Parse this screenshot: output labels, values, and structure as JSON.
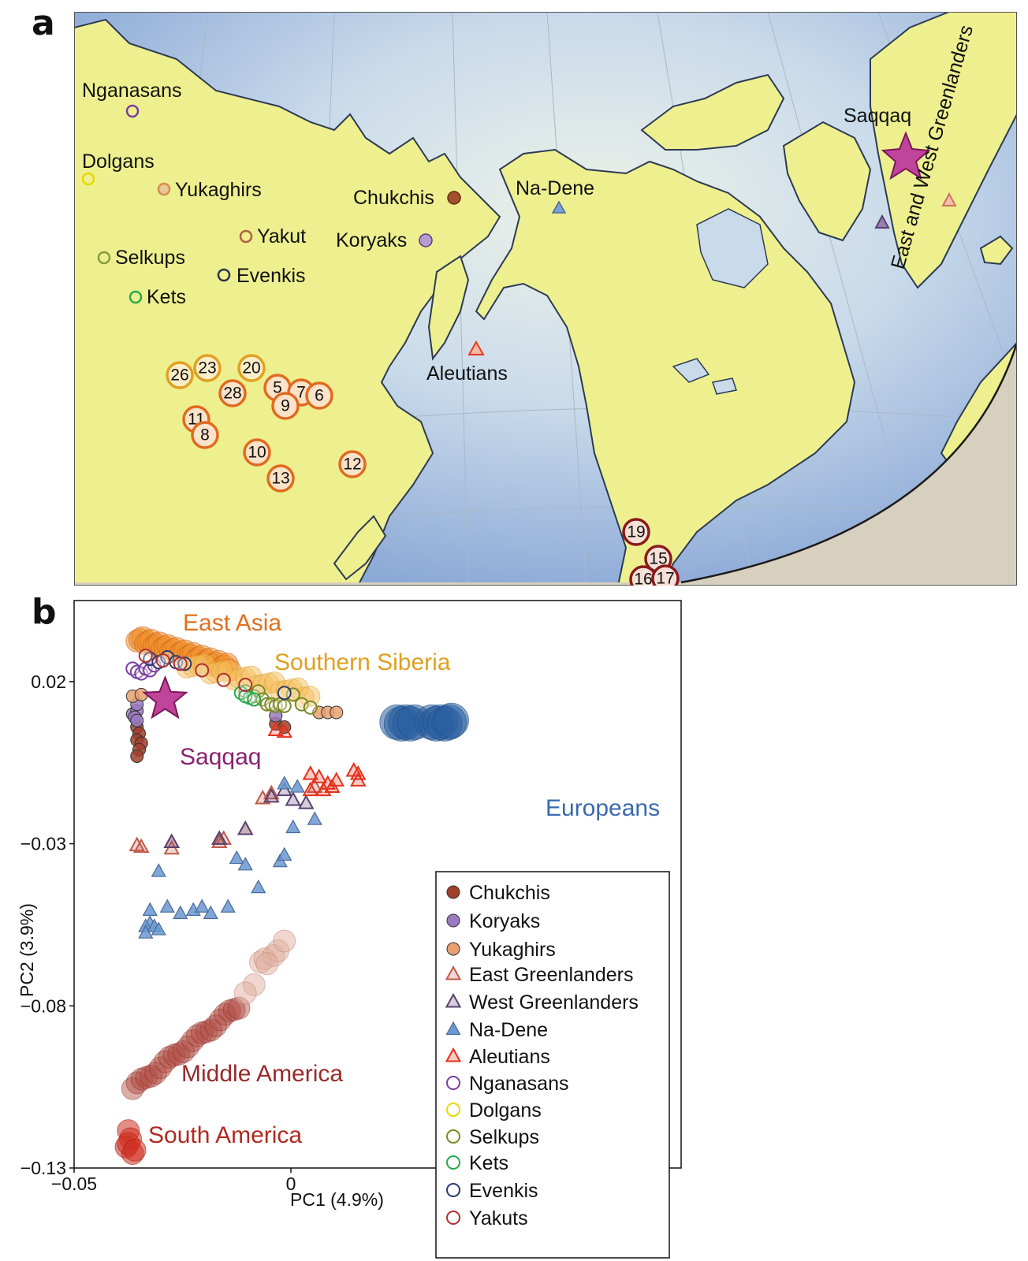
{
  "panel_a": {
    "letter": "a",
    "populations": [
      {
        "label": "Nganasans",
        "color": "#7a3fa0"
      },
      {
        "label": "Dolgans",
        "color": "#e6d800"
      },
      {
        "label": "Yukaghirs",
        "color": "#d98a50"
      },
      {
        "label": "Selkups",
        "color": "#8a9a40"
      },
      {
        "label": "Kets",
        "color": "#2aa84a"
      },
      {
        "label": "Yakut",
        "color": "#b06040"
      },
      {
        "label": "Evenkis",
        "color": "#2a3550"
      },
      {
        "label": "Chukchis",
        "color": "#a0502a"
      },
      {
        "label": "Koryaks",
        "color": "#9a7ac0"
      },
      {
        "label": "Na-Dene",
        "color": "#7aa0d0"
      },
      {
        "label": "Aleutians",
        "color": "#e83a20"
      },
      {
        "label": "Saqqaq",
        "color": "#c0449a"
      },
      {
        "label": "East and West Greenlanders",
        "color": "#d07060"
      }
    ],
    "sites": [
      "26",
      "23",
      "20",
      "28",
      "5",
      "7",
      "6",
      "9",
      "11",
      "8",
      "10",
      "13",
      "12",
      "19",
      "15",
      "16",
      "17"
    ]
  },
  "panel_b": {
    "letter": "b",
    "chart_data": {
      "type": "scatter",
      "xlabel": "PC1 (4.9%)",
      "ylabel": "PC2 (3.9%)",
      "x_ticks": [
        "−0.05",
        "0"
      ],
      "y_ticks": [
        "0.02",
        "−0.03",
        "−0.08",
        "−0.13"
      ],
      "xlim": [
        -0.05,
        0.09
      ],
      "ylim": [
        -0.13,
        0.045
      ],
      "region_labels": [
        {
          "text": "East Asia",
          "color": "#e07020"
        },
        {
          "text": "Southern Siberia",
          "color": "#e0a020"
        },
        {
          "text": "Saqqaq",
          "color": "#8a2070"
        },
        {
          "text": "Europeans",
          "color": "#3a6ab0"
        },
        {
          "text": "Middle America",
          "color": "#9a2a2a"
        },
        {
          "text": "South America",
          "color": "#b02a20"
        }
      ],
      "legend_position": "bottom-right",
      "legend": [
        {
          "label": "Chukchis",
          "marker": "filled-circle",
          "color": "#a0402a"
        },
        {
          "label": "Koryaks",
          "marker": "filled-circle",
          "color": "#9a7ac0"
        },
        {
          "label": "Yukaghirs",
          "marker": "filled-circle",
          "color": "#e8a070"
        },
        {
          "label": "East Greenlanders",
          "marker": "open-triangle",
          "color": "#c05a4a"
        },
        {
          "label": "West Greenlanders",
          "marker": "open-triangle",
          "color": "#5a4070"
        },
        {
          "label": "Na-Dene",
          "marker": "filled-triangle",
          "color": "#6a98d0"
        },
        {
          "label": "Aleutians",
          "marker": "open-triangle",
          "color": "#e8301a"
        },
        {
          "label": "Nganasans",
          "marker": "open-circle",
          "color": "#7a3fa0"
        },
        {
          "label": "Dolgans",
          "marker": "open-circle",
          "color": "#e6d800"
        },
        {
          "label": "Selkups",
          "marker": "open-circle",
          "color": "#7a8a20"
        },
        {
          "label": "Kets",
          "marker": "open-circle",
          "color": "#2aa84a"
        },
        {
          "label": "Evenkis",
          "marker": "open-circle",
          "color": "#2a3a70"
        },
        {
          "label": "Yakuts",
          "marker": "open-circle",
          "color": "#b03030"
        }
      ],
      "series": [
        {
          "name": "Chukchis",
          "points": [
            [
              -0.0355,
              0.006
            ],
            [
              -0.035,
              0.004
            ],
            [
              -0.0355,
              0.002
            ],
            [
              -0.0345,
              0.001
            ],
            [
              -0.035,
              -0.001
            ],
            [
              -0.0355,
              -0.003
            ],
            [
              -0.0035,
              0.007
            ],
            [
              -0.0015,
              0.006
            ]
          ]
        },
        {
          "name": "Koryaks",
          "points": [
            [
              -0.0365,
              0.01
            ],
            [
              -0.0355,
              0.011
            ],
            [
              -0.036,
              0.009
            ],
            [
              -0.0355,
              0.008
            ],
            [
              -0.0355,
              0.013
            ],
            [
              -0.0035,
              0.0095
            ]
          ]
        },
        {
          "name": "Yukaghirs",
          "points": [
            [
              -0.0365,
              0.0155
            ],
            [
              -0.0345,
              0.016
            ],
            [
              0.0065,
              0.0105
            ],
            [
              0.0085,
              0.0105
            ],
            [
              0.0105,
              0.0105
            ]
          ]
        },
        {
          "name": "East Greenlanders",
          "points": [
            [
              -0.0355,
              -0.0305
            ],
            [
              -0.0345,
              -0.031
            ],
            [
              -0.0275,
              -0.0315
            ],
            [
              -0.0275,
              -0.0295
            ],
            [
              -0.0165,
              -0.0295
            ],
            [
              -0.0155,
              -0.0285
            ],
            [
              -0.0065,
              -0.016
            ],
            [
              -0.0045,
              -0.0145
            ],
            [
              0.0055,
              -0.0125
            ],
            [
              -0.0105,
              -0.0255
            ]
          ]
        },
        {
          "name": "West Greenlanders",
          "points": [
            [
              -0.0275,
              -0.0295
            ],
            [
              -0.0165,
              -0.0285
            ],
            [
              -0.0105,
              -0.0255
            ],
            [
              -0.0045,
              -0.0155
            ],
            [
              -0.0015,
              -0.0135
            ],
            [
              0.0005,
              -0.0165
            ],
            [
              0.0035,
              -0.0175
            ]
          ]
        },
        {
          "name": "Na-Dene",
          "points": [
            [
              -0.0305,
              -0.0385
            ],
            [
              -0.0325,
              -0.0505
            ],
            [
              -0.0285,
              -0.0495
            ],
            [
              -0.0255,
              -0.0515
            ],
            [
              -0.0325,
              -0.0545
            ],
            [
              -0.0335,
              -0.0555
            ],
            [
              -0.0315,
              -0.0555
            ],
            [
              -0.0335,
              -0.0575
            ],
            [
              -0.0305,
              -0.0565
            ],
            [
              -0.0225,
              -0.0505
            ],
            [
              -0.0205,
              -0.0495
            ],
            [
              -0.0185,
              -0.0515
            ],
            [
              -0.0145,
              -0.0495
            ],
            [
              -0.0025,
              -0.0355
            ],
            [
              -0.0015,
              -0.0335
            ],
            [
              -0.0075,
              -0.0435
            ],
            [
              -0.0125,
              -0.0345
            ],
            [
              -0.0105,
              -0.0365
            ],
            [
              -0.0015,
              -0.0115
            ],
            [
              0.0015,
              -0.0125
            ],
            [
              0.0005,
              -0.025
            ],
            [
              0.0055,
              -0.0225
            ]
          ]
        },
        {
          "name": "Aleutians",
          "points": [
            [
              -0.0035,
              0.005
            ],
            [
              -0.0015,
              0.0045
            ],
            [
              0.0045,
              -0.0085
            ],
            [
              0.0065,
              -0.0095
            ],
            [
              0.0095,
              -0.0125
            ],
            [
              0.0085,
              -0.0115
            ],
            [
              0.0105,
              -0.0105
            ],
            [
              0.0075,
              -0.0135
            ],
            [
              0.0145,
              -0.0075
            ],
            [
              0.0155,
              -0.0085
            ],
            [
              0.0155,
              -0.0105
            ],
            [
              0.0045,
              -0.0135
            ]
          ]
        },
        {
          "name": "Nganasans",
          "points": [
            [
              -0.0365,
              0.024
            ],
            [
              -0.0355,
              0.023
            ],
            [
              -0.0345,
              0.0225
            ],
            [
              -0.0335,
              0.024
            ],
            [
              -0.0325,
              0.0235
            ],
            [
              -0.0315,
              0.025
            ]
          ]
        },
        {
          "name": "Selkups",
          "points": [
            [
              -0.0105,
              0.017
            ],
            [
              -0.0085,
              0.0155
            ],
            [
              -0.0075,
              0.017
            ],
            [
              -0.0065,
              0.0145
            ],
            [
              -0.0055,
              0.013
            ],
            [
              -0.0045,
              0.013
            ],
            [
              -0.0035,
              0.0125
            ],
            [
              -0.0025,
              0.013
            ],
            [
              -0.0015,
              0.0125
            ],
            [
              0.0005,
              0.016
            ],
            [
              0.0025,
              0.013
            ],
            [
              0.0045,
              0.012
            ]
          ]
        },
        {
          "name": "Kets",
          "points": [
            [
              -0.0115,
              0.0165
            ],
            [
              -0.0095,
              0.015
            ],
            [
              -0.0105,
              0.0155
            ],
            [
              -0.0085,
              0.0145
            ]
          ]
        },
        {
          "name": "Evenkis",
          "points": [
            [
              -0.0325,
              0.027
            ],
            [
              -0.0305,
              0.026
            ],
            [
              -0.0285,
              0.0275
            ],
            [
              -0.0265,
              0.026
            ],
            [
              -0.0245,
              0.0255
            ],
            [
              -0.0015,
              0.0165
            ]
          ]
        },
        {
          "name": "Yakuts",
          "points": [
            [
              -0.0335,
              0.028
            ],
            [
              -0.0295,
              0.0265
            ],
            [
              -0.0255,
              0.0255
            ],
            [
              -0.0205,
              0.0235
            ],
            [
              -0.0155,
              0.0205
            ],
            [
              -0.0105,
              0.019
            ]
          ]
        }
      ],
      "saqqaq": {
        "x": -0.029,
        "y": 0.0145
      }
    }
  }
}
